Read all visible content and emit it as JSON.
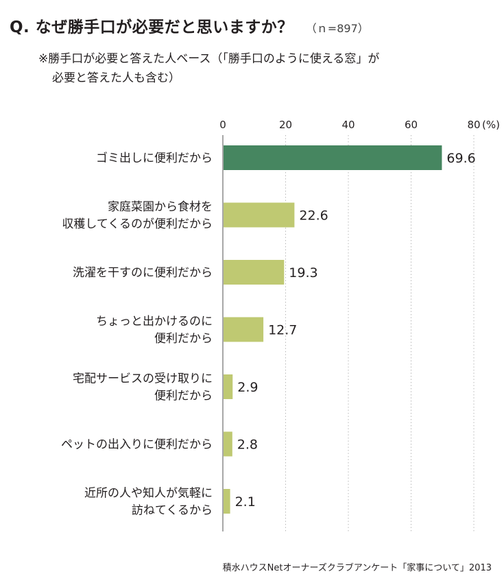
{
  "title": "Q. なぜ勝手口が必要だと思いますか？",
  "sample_size": "（ｎ=897）",
  "note_line1": "※勝手口が必要と答えた人ベース（「勝手口のように使える窓」が",
  "note_line2": "必要と答えた人も含む）",
  "source": "積水ハウスNetオーナーズクラブアンケート「家事について」2013",
  "colors": {
    "highlight": "#468660",
    "bar": "#bfc972",
    "grid": "#b8b8b8"
  },
  "chart_data": {
    "type": "bar",
    "orientation": "horizontal",
    "unit": "(%)",
    "xlim": [
      0,
      80
    ],
    "ticks": [
      0,
      20,
      40,
      60,
      80
    ],
    "categories": [
      [
        "ゴミ出しに便利だから"
      ],
      [
        "家庭菜園から食材を",
        "収穫してくるのが便利だから"
      ],
      [
        "洗濯を干すのに便利だから"
      ],
      [
        "ちょっと出かけるのに",
        "便利だから"
      ],
      [
        "宅配サービスの受け取りに",
        "便利だから"
      ],
      [
        "ペットの出入りに便利だから"
      ],
      [
        "近所の人や知人が気軽に",
        "訪ねてくるから"
      ]
    ],
    "values": [
      69.6,
      22.6,
      19.3,
      12.7,
      2.9,
      2.8,
      2.1
    ],
    "value_labels": [
      "69.6",
      "22.6",
      "19.3",
      "12.7",
      "2.9",
      "2.8",
      "2.1"
    ],
    "highlight_index": 0,
    "grid": true
  }
}
